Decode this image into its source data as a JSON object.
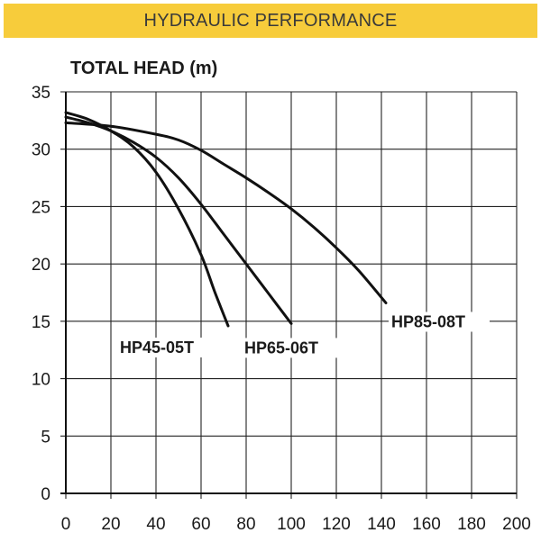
{
  "banner": {
    "title": "HYDRAULIC PERFORMANCE"
  },
  "colors": {
    "banner_bg": "#f7cc3b",
    "curve": "#111111",
    "grid": "#222222"
  },
  "chart_data": {
    "type": "line",
    "title": "",
    "xlabel": "",
    "ylabel": "TOTAL HEAD (m)",
    "xlim": [
      0,
      200
    ],
    "ylim": [
      0,
      35
    ],
    "x_ticks": [
      0,
      20,
      40,
      60,
      80,
      100,
      120,
      140,
      160,
      180,
      200
    ],
    "y_ticks": [
      0,
      5,
      10,
      15,
      20,
      25,
      30,
      35
    ],
    "grid": true,
    "legend": "none",
    "series": [
      {
        "name": "HP45-05T",
        "x": [
          0,
          10,
          20,
          30,
          40,
          50,
          60,
          66,
          72
        ],
        "y": [
          33.2,
          32.6,
          31.6,
          30.2,
          28,
          24.8,
          20.8,
          17.6,
          14.6
        ]
      },
      {
        "name": "HP65-06T",
        "x": [
          0,
          10,
          20,
          30,
          40,
          50,
          60,
          70,
          80,
          90,
          100
        ],
        "y": [
          32.8,
          32.3,
          31.6,
          30.6,
          29.3,
          27.5,
          25.2,
          22.6,
          20,
          17.4,
          14.8
        ]
      },
      {
        "name": "HP85-08T",
        "x": [
          0,
          20,
          40,
          50,
          60,
          70,
          80,
          90,
          100,
          110,
          120,
          130,
          142
        ],
        "y": [
          32.3,
          32,
          31.3,
          30.8,
          29.9,
          28.7,
          27.5,
          26.2,
          24.8,
          23.2,
          21.4,
          19.4,
          16.6
        ]
      }
    ]
  }
}
